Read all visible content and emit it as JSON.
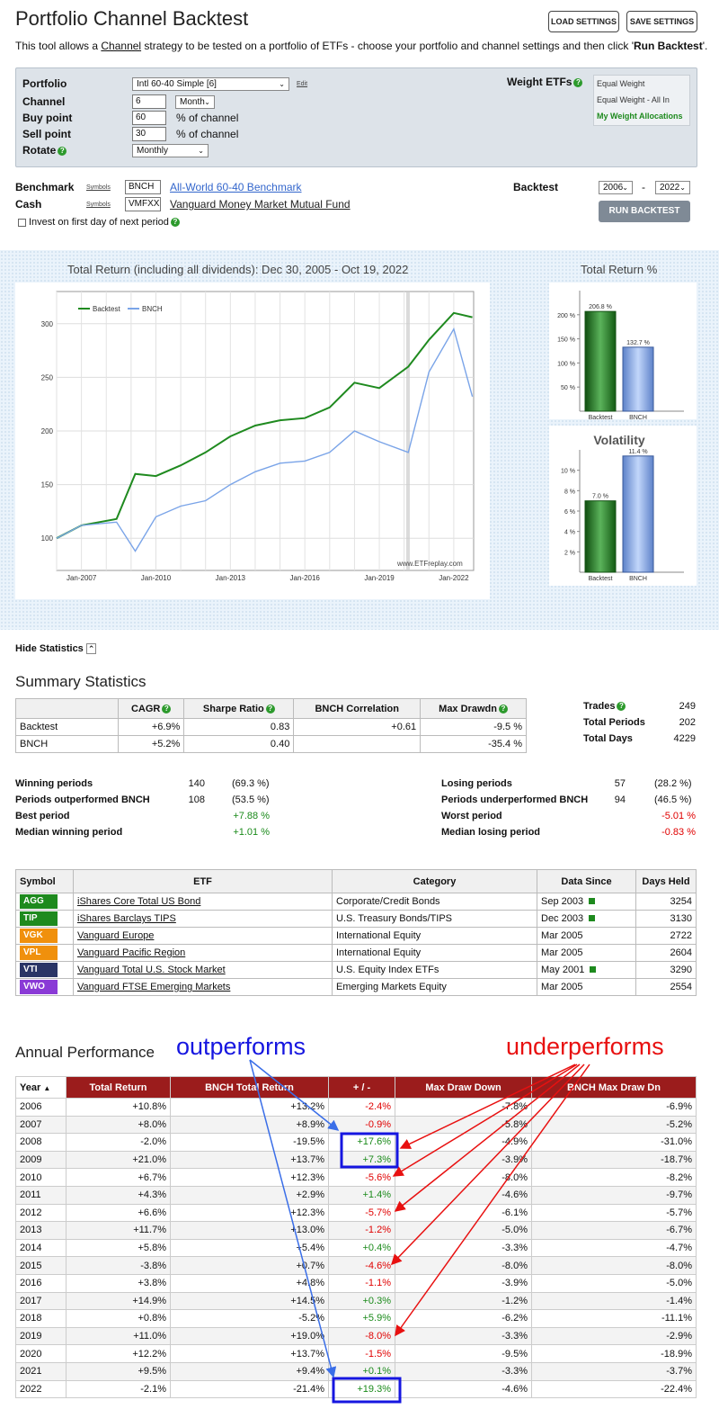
{
  "page": {
    "title": "Portfolio Channel Backtest",
    "desc_pre": "This tool allows a ",
    "desc_link": "Channel",
    "desc_mid": " strategy to be tested on a portfolio of ETFs - choose your portfolio and channel settings and then click '",
    "desc_bold": "Run Backtest",
    "desc_post": "'.",
    "load_settings": "LOAD SETTINGS",
    "save_settings": "SAVE SETTINGS"
  },
  "settings": {
    "portfolio_label": "Portfolio",
    "portfolio_value": "Intl 60-40 Simple [6]",
    "edit": "Edit",
    "channel_label": "Channel",
    "channel_value": "6",
    "channel_unit": "Month",
    "buy_label": "Buy point",
    "buy_value": "60",
    "buy_suffix": "% of channel",
    "sell_label": "Sell point",
    "sell_value": "30",
    "sell_suffix": "% of channel",
    "rotate_label": "Rotate",
    "rotate_value": "Monthly",
    "weight_label": "Weight ETFs",
    "weight_options": [
      "Equal Weight",
      "Equal Weight - All In",
      "My Weight Allocations"
    ]
  },
  "bench": {
    "benchmark_label": "Benchmark",
    "symbols": "Symbols",
    "benchmark_value": "BNCH",
    "benchmark_name": "All-World 60-40 Benchmark",
    "cash_label": "Cash",
    "cash_value": "VMFXX",
    "cash_name": "Vanguard Money Market Mutual Fund",
    "invest_label": "Invest on first day of next period",
    "backtest_label": "Backtest",
    "year_from": "2006",
    "year_to": "2022",
    "dash": "-",
    "run": "RUN BACKTEST"
  },
  "charts": {
    "main_title": "Total Return (including all dividends): Dec 30, 2005 - Oct 19, 2022",
    "legend_a": "Backtest",
    "legend_b": "BNCH",
    "watermark": "www.ETFreplay.com",
    "y_ticks": [
      "300",
      "250",
      "200",
      "150",
      "100"
    ],
    "x_ticks": [
      "Jan-2007",
      "Jan-2010",
      "Jan-2013",
      "Jan-2016",
      "Jan-2019",
      "Jan-2022"
    ],
    "total_return_title": "Total Return %",
    "volatility_title": "Volatility",
    "colors": {
      "backtest": "#1f8a1f",
      "bnch": "#7aa4e8"
    }
  },
  "chart_data": [
    {
      "type": "line",
      "title": "Total Return (including all dividends): Dec 30, 2005 - Oct 19, 2022",
      "ylim": [
        70,
        330
      ],
      "x_ticks": [
        "Jan-2007",
        "Jan-2010",
        "Jan-2013",
        "Jan-2016",
        "Jan-2019",
        "Jan-2022"
      ],
      "x": [
        "2006-01",
        "2007-01",
        "2008-06",
        "2009-03",
        "2010-01",
        "2011-01",
        "2012-01",
        "2013-01",
        "2014-01",
        "2015-01",
        "2016-01",
        "2017-01",
        "2018-01",
        "2019-01",
        "2020-03",
        "2021-01",
        "2022-01",
        "2022-10"
      ],
      "series": [
        {
          "name": "Backtest",
          "values": [
            100,
            112,
            118,
            160,
            158,
            168,
            180,
            195,
            205,
            210,
            212,
            222,
            245,
            240,
            260,
            285,
            310,
            306
          ]
        },
        {
          "name": "BNCH",
          "values": [
            100,
            112,
            115,
            88,
            120,
            130,
            135,
            150,
            162,
            170,
            172,
            180,
            200,
            190,
            180,
            255,
            295,
            232
          ]
        }
      ]
    },
    {
      "type": "bar",
      "title": "Total Return %",
      "categories": [
        "Backtest",
        "BNCH"
      ],
      "values": [
        206.8,
        132.7
      ],
      "labels": [
        "206.8 %",
        "132.7 %"
      ],
      "y_ticks": [
        "200 %",
        "150 %",
        "100 %",
        "50 %"
      ],
      "ylim": [
        0,
        250
      ]
    },
    {
      "type": "bar",
      "title": "Volatility",
      "categories": [
        "Backtest",
        "BNCH"
      ],
      "values": [
        7.0,
        11.4
      ],
      "labels": [
        "7.0 %",
        "11.4 %"
      ],
      "y_ticks": [
        "10 %",
        "8 %",
        "6 %",
        "4 %",
        "2 %"
      ],
      "ylim": [
        0,
        12
      ]
    }
  ],
  "stats": {
    "hide": "Hide Statistics",
    "summary_title": "Summary Statistics",
    "headers": [
      "CAGR",
      "Sharpe Ratio",
      "BNCH Correlation",
      "Max Drawdn"
    ],
    "rows": [
      {
        "name": "Backtest",
        "cagr": "+6.9%",
        "sharpe": "0.83",
        "corr": "+0.61",
        "dd": "-9.5 %"
      },
      {
        "name": "BNCH",
        "cagr": "+5.2%",
        "sharpe": "0.40",
        "corr": "",
        "dd": "-35.4 %"
      }
    ],
    "trades_label": "Trades",
    "trades": "249",
    "periods_label": "Total Periods",
    "periods": "202",
    "days_label": "Total Days",
    "days": "4229",
    "winning_label": "Winning periods",
    "winning": "140",
    "winning_pct": "(69.3 %)",
    "outperf_label": "Periods outperformed BNCH",
    "outperf": "108",
    "outperf_pct": "(53.5 %)",
    "best_label": "Best period",
    "best": "+7.88 %",
    "median_win_label": "Median winning period",
    "median_win": "+1.01 %",
    "losing_label": "Losing periods",
    "losing": "57",
    "losing_pct": "(28.2 %)",
    "underperf_label": "Periods underperformed BNCH",
    "underperf": "94",
    "underperf_pct": "(46.5 %)",
    "worst_label": "Worst period",
    "worst": "-5.01 %",
    "median_lose_label": "Median losing period",
    "median_lose": "-0.83 %"
  },
  "etfs": {
    "headers": [
      "Symbol",
      "ETF",
      "Category",
      "Data Since",
      "Days Held"
    ],
    "rows": [
      {
        "sym": "AGG",
        "color": "#1e8a1e",
        "name": "iShares Core Total US Bond",
        "cat": "Corporate/Credit Bonds",
        "since": "Sep 2003",
        "flag": true,
        "days": "3254"
      },
      {
        "sym": "TIP",
        "color": "#1e8a1e",
        "name": "iShares Barclays TIPS",
        "cat": "U.S. Treasury Bonds/TIPS",
        "since": "Dec 2003",
        "flag": true,
        "days": "3130"
      },
      {
        "sym": "VGK",
        "color": "#f0900c",
        "name": "Vanguard Europe",
        "cat": "International Equity",
        "since": "Mar 2005",
        "flag": false,
        "days": "2722"
      },
      {
        "sym": "VPL",
        "color": "#f0900c",
        "name": "Vanguard Pacific Region",
        "cat": "International Equity",
        "since": "Mar 2005",
        "flag": false,
        "days": "2604"
      },
      {
        "sym": "VTI",
        "color": "#2a3566",
        "name": "Vanguard Total U.S. Stock Market",
        "cat": "U.S. Equity Index ETFs",
        "since": "May 2001",
        "flag": true,
        "days": "3290"
      },
      {
        "sym": "VWO",
        "color": "#8a3ad6",
        "name": "Vanguard FTSE Emerging Markets",
        "cat": "Emerging Markets Equity",
        "since": "Mar 2005",
        "flag": false,
        "days": "2554"
      }
    ]
  },
  "annual": {
    "title": "Annual Performance",
    "outperforms": "outperforms",
    "underperforms": "underperforms",
    "headers": [
      "Year",
      "Total Return",
      "BNCH Total Return",
      "+ / -",
      "Max Draw Down",
      "BNCH Max Draw Dn"
    ],
    "rows": [
      {
        "year": "2006",
        "tr": "+10.8%",
        "btr": "+13.2%",
        "diff": "-2.4%",
        "dd": "-7.8%",
        "bdd": "-6.9%"
      },
      {
        "year": "2007",
        "tr": "+8.0%",
        "btr": "+8.9%",
        "diff": "-0.9%",
        "dd": "-5.8%",
        "bdd": "-5.2%"
      },
      {
        "year": "2008",
        "tr": "-2.0%",
        "btr": "-19.5%",
        "diff": "+17.6%",
        "dd": "-4.9%",
        "bdd": "-31.0%"
      },
      {
        "year": "2009",
        "tr": "+21.0%",
        "btr": "+13.7%",
        "diff": "+7.3%",
        "dd": "-3.9%",
        "bdd": "-18.7%"
      },
      {
        "year": "2010",
        "tr": "+6.7%",
        "btr": "+12.3%",
        "diff": "-5.6%",
        "dd": "-8.0%",
        "bdd": "-8.2%"
      },
      {
        "year": "2011",
        "tr": "+4.3%",
        "btr": "+2.9%",
        "diff": "+1.4%",
        "dd": "-4.6%",
        "bdd": "-9.7%"
      },
      {
        "year": "2012",
        "tr": "+6.6%",
        "btr": "+12.3%",
        "diff": "-5.7%",
        "dd": "-6.1%",
        "bdd": "-5.7%"
      },
      {
        "year": "2013",
        "tr": "+11.7%",
        "btr": "+13.0%",
        "diff": "-1.2%",
        "dd": "-5.0%",
        "bdd": "-6.7%"
      },
      {
        "year": "2014",
        "tr": "+5.8%",
        "btr": "+5.4%",
        "diff": "+0.4%",
        "dd": "-3.3%",
        "bdd": "-4.7%"
      },
      {
        "year": "2015",
        "tr": "-3.8%",
        "btr": "+0.7%",
        "diff": "-4.6%",
        "dd": "-8.0%",
        "bdd": "-8.0%"
      },
      {
        "year": "2016",
        "tr": "+3.8%",
        "btr": "+4.8%",
        "diff": "-1.1%",
        "dd": "-3.9%",
        "bdd": "-5.0%"
      },
      {
        "year": "2017",
        "tr": "+14.9%",
        "btr": "+14.5%",
        "diff": "+0.3%",
        "dd": "-1.2%",
        "bdd": "-1.4%"
      },
      {
        "year": "2018",
        "tr": "+0.8%",
        "btr": "-5.2%",
        "diff": "+5.9%",
        "dd": "-6.2%",
        "bdd": "-11.1%"
      },
      {
        "year": "2019",
        "tr": "+11.0%",
        "btr": "+19.0%",
        "diff": "-8.0%",
        "dd": "-3.3%",
        "bdd": "-2.9%"
      },
      {
        "year": "2020",
        "tr": "+12.2%",
        "btr": "+13.7%",
        "diff": "-1.5%",
        "dd": "-9.5%",
        "bdd": "-18.9%"
      },
      {
        "year": "2021",
        "tr": "+9.5%",
        "btr": "+9.4%",
        "diff": "+0.1%",
        "dd": "-3.3%",
        "bdd": "-3.7%"
      },
      {
        "year": "2022",
        "tr": "-2.1%",
        "btr": "-21.4%",
        "diff": "+19.3%",
        "dd": "-4.6%",
        "bdd": "-22.4%"
      }
    ]
  }
}
